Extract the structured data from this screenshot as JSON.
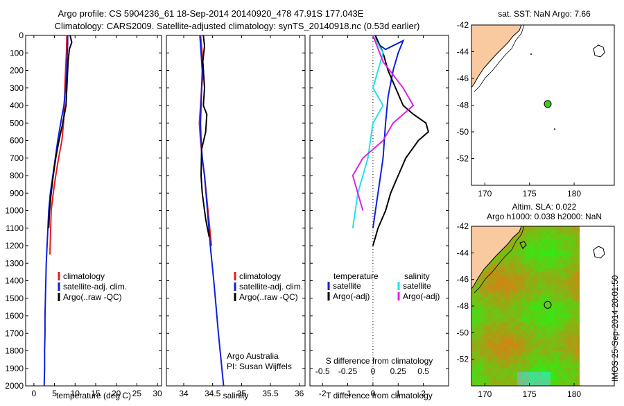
{
  "header": {
    "line1": "Argo profile: CS 5904236_61 18-Sep-2014 20140920_478 47.91S 177.043E",
    "line2": "Climatology: CARS2009. Satellite-adjusted climatology: synTS_20140918.nc (0.53d earlier)"
  },
  "colors": {
    "climatology": "#e31a1c",
    "satellite": "#0b1fe0",
    "argo": "#000000",
    "sal_satellite": "#22e0e8",
    "sal_argo": "#e020e0",
    "land": "#f9c9a0",
    "float_marker": "#44cc22"
  },
  "sidebar_stamp": "IMOS 25-Sep-2014 20:01:50",
  "chart_data": [
    {
      "type": "line",
      "name": "temperature-profile",
      "xlabel": "temperature (deg C)",
      "ylabel": "",
      "xlim": [
        -2,
        31
      ],
      "ylim": [
        2000,
        0
      ],
      "xticks": [
        0,
        5,
        10,
        15,
        20,
        25,
        30
      ],
      "yticks": [
        0,
        100,
        200,
        300,
        400,
        500,
        600,
        700,
        800,
        900,
        1000,
        1100,
        1200,
        1300,
        1400,
        1500,
        1600,
        1700,
        1800,
        1900,
        2000
      ],
      "legend": [
        "climatology",
        "satellite-adj. clim.",
        "Argo(..raw -QC)"
      ],
      "series": [
        {
          "name": "climatology",
          "x": [
            8.0,
            7.9,
            7.6,
            7.4,
            7.2,
            6.8,
            6.0,
            5.3,
            4.7,
            4.2,
            3.9
          ],
          "y": [
            0,
            100,
            250,
            400,
            500,
            600,
            700,
            800,
            900,
            1000,
            1250
          ]
        },
        {
          "name": "satellite-adj. clim.",
          "x": [
            8.2,
            8.2,
            8.1,
            8.0,
            7.7,
            7.3,
            6.5,
            5.8,
            5.2,
            4.6,
            4.0,
            3.6,
            3.4,
            3.2,
            3.0,
            2.9,
            2.8,
            2.7,
            2.7,
            2.6,
            2.6,
            2.5
          ],
          "y": [
            0,
            50,
            100,
            200,
            300,
            400,
            500,
            600,
            700,
            800,
            900,
            1000,
            1100,
            1200,
            1300,
            1400,
            1500,
            1600,
            1700,
            1800,
            1900,
            2000
          ]
        },
        {
          "name": "Argo(..raw -QC)",
          "x": [
            8.8,
            9.2,
            8.6,
            8.3,
            8.1,
            7.8,
            7.0,
            6.1,
            5.3,
            4.7,
            4.2,
            3.8,
            3.6
          ],
          "y": [
            0,
            40,
            80,
            150,
            250,
            400,
            500,
            600,
            700,
            800,
            900,
            1000,
            1100
          ]
        }
      ]
    },
    {
      "type": "line",
      "name": "salinity-profile",
      "xlabel": "salinity",
      "xlim": [
        33.7,
        36.1
      ],
      "ylim": [
        2000,
        0
      ],
      "xticks": [
        34,
        34.5,
        35,
        35.5,
        36
      ],
      "legend": [
        "climatology",
        "satellite-adj. clim.",
        "Argo(..raw -QC)"
      ],
      "annotation_1": "Argo Australia",
      "annotation_2": "PI: Susan Wijffels",
      "series": [
        {
          "name": "climatology",
          "x": [
            34.29,
            34.32,
            34.34,
            34.31,
            34.29,
            34.27,
            34.29,
            34.32,
            34.36,
            34.42,
            34.48
          ],
          "y": [
            0,
            100,
            200,
            300,
            400,
            500,
            600,
            700,
            800,
            1000,
            1200
          ]
        },
        {
          "name": "satellite-adj. clim.",
          "x": [
            34.28,
            34.3,
            34.32,
            34.31,
            34.3,
            34.29,
            34.3,
            34.32,
            34.36,
            34.41,
            34.46,
            34.52,
            34.56,
            34.6,
            34.63,
            34.66,
            34.69
          ],
          "y": [
            0,
            100,
            200,
            300,
            400,
            500,
            600,
            700,
            800,
            1000,
            1200,
            1400,
            1550,
            1700,
            1800,
            1900,
            2000
          ]
        },
        {
          "name": "Argo(..raw -QC)",
          "x": [
            34.34,
            34.36,
            34.33,
            34.36,
            34.34,
            34.4,
            34.38,
            34.31,
            34.3,
            34.32,
            34.38,
            34.44
          ],
          "y": [
            0,
            60,
            150,
            300,
            400,
            450,
            550,
            650,
            800,
            900,
            1050,
            1150
          ]
        }
      ]
    },
    {
      "type": "line",
      "name": "difference-profile",
      "xlabel": "T difference from climatology",
      "x2label": "S difference from climatology",
      "xlim": [
        -2.5,
        3
      ],
      "ylim": [
        2000,
        0
      ],
      "xticks": [
        -2,
        -1,
        0,
        1,
        2
      ],
      "x2ticks": [
        "-0.5",
        "-0.25",
        "0",
        "0.25",
        "0.5"
      ],
      "legend_heads": [
        "temperature",
        "salinity"
      ],
      "legend": [
        "satellite",
        "Argo(-adj)",
        "satellite",
        "Argo(-adj)"
      ],
      "series": [
        {
          "name": "temperature satellite",
          "x": [
            0.1,
            0.2,
            0.5,
            1.2,
            1.0,
            0.8,
            0.6,
            0.5,
            0.4,
            0.2,
            0.1,
            0.0
          ],
          "y": [
            0,
            50,
            80,
            30,
            100,
            200,
            350,
            500,
            700,
            900,
            1000,
            1100
          ]
        },
        {
          "name": "temperature Argo(-adj)",
          "x": [
            0.1,
            0.4,
            0.6,
            0.9,
            1.2,
            1.6,
            2.1,
            2.2,
            1.8,
            1.3,
            1.0,
            0.7,
            0.5,
            0.2,
            0.0
          ],
          "y": [
            0,
            100,
            200,
            300,
            400,
            450,
            500,
            550,
            600,
            700,
            800,
            900,
            1000,
            1100,
            1200
          ]
        },
        {
          "name": "salinity satellite",
          "x": [
            0.0,
            0.1,
            0.0,
            0.1,
            0.0,
            -0.05,
            -0.1,
            -0.15,
            -0.2
          ],
          "y": [
            0,
            100,
            300,
            400,
            500,
            700,
            800,
            900,
            1100
          ]
        },
        {
          "name": "salinity Argo(-adj)",
          "x": [
            0.0,
            0.1,
            0.3,
            0.4,
            0.2,
            0.1,
            -0.1,
            -0.2,
            -0.1
          ],
          "y": [
            0,
            150,
            300,
            400,
            500,
            600,
            700,
            800,
            1000
          ]
        }
      ]
    },
    {
      "type": "scatter",
      "name": "map-sst",
      "title": "sat. SST: NaN Argo: 7.66",
      "xlim": [
        168.5,
        184.5
      ],
      "ylim": [
        -54,
        -42
      ],
      "xticks": [
        170,
        175,
        180
      ],
      "yticks": [
        -42,
        -44,
        -46,
        -48,
        -50,
        -52
      ],
      "float": {
        "lon": 177.043,
        "lat": -47.91
      }
    },
    {
      "type": "heatmap",
      "name": "map-sla",
      "title1": "Altim. SLA: 0.022",
      "title2": "Argo h1000: 0.038 h2000: NaN",
      "xlim": [
        168.5,
        184.5
      ],
      "ylim": [
        -54,
        -42
      ],
      "xticks": [
        170,
        175,
        180
      ],
      "yticks": [
        -42,
        -44,
        -46,
        -48,
        -50,
        -52
      ],
      "float": {
        "lon": 177.043,
        "lat": -47.91
      }
    }
  ]
}
